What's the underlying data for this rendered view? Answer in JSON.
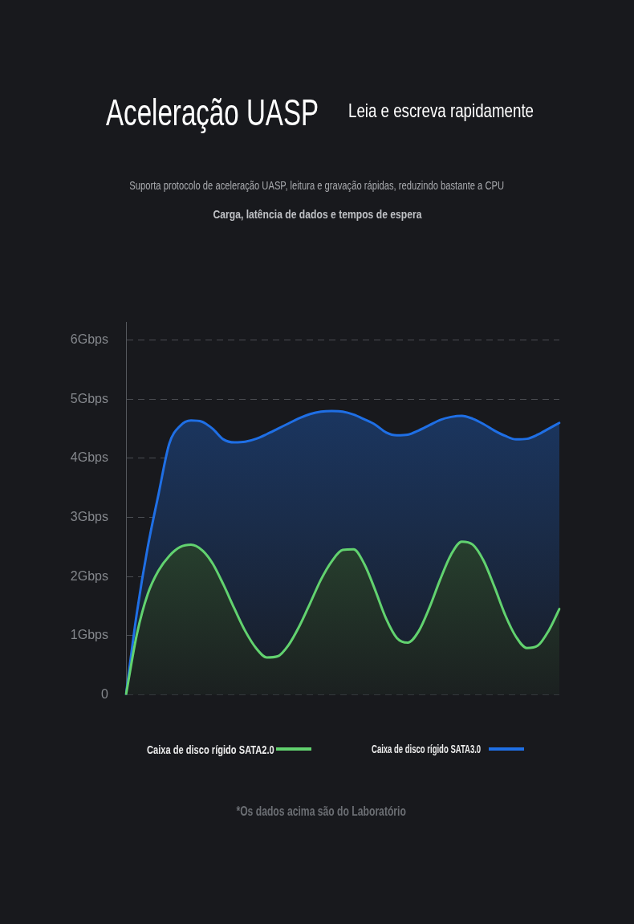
{
  "chart_data": {
    "type": "area",
    "title": "Aceleração UASP",
    "subtitle": "Leia e escreva rapidamente",
    "annotations": [
      "Suporta protocolo de aceleração UASP, leitura e gravação rápidas, reduzindo bastante a CPU",
      "Carga, latência de dados e tempos de espera",
      "*Os dados acima são do Laboratório"
    ],
    "categories": [
      null,
      null,
      null,
      null,
      null,
      null,
      null,
      null,
      null,
      null,
      null,
      null,
      null,
      null,
      null,
      null,
      null,
      null,
      null,
      null,
      null,
      null,
      null,
      null,
      null,
      null,
      null,
      null,
      null,
      null,
      null,
      null,
      null,
      null,
      null,
      null,
      null,
      null,
      null,
      null,
      null
    ],
    "series": [
      {
        "name": "Caixa de disco rígido SATA2.0",
        "color": "#62d26f",
        "values": [
          0,
          1.02,
          1.7,
          2.1,
          2.35,
          2.5,
          2.54,
          2.45,
          2.22,
          1.86,
          1.46,
          1.08,
          0.79,
          0.63,
          0.65,
          0.84,
          1.16,
          1.55,
          1.95,
          2.26,
          2.45,
          2.46,
          2.21,
          1.77,
          1.29,
          0.96,
          0.88,
          1.07,
          1.47,
          1.95,
          2.37,
          2.59,
          2.54,
          2.27,
          1.83,
          1.35,
          0.98,
          0.79,
          0.83,
          1.08,
          1.45
        ]
      },
      {
        "name": "Caixa de disco rígido SATA3.0",
        "color": "#1f6fe5",
        "values": [
          0,
          1.38,
          2.49,
          3.39,
          4.25,
          4.55,
          4.64,
          4.62,
          4.5,
          4.32,
          4.27,
          4.28,
          4.33,
          4.41,
          4.5,
          4.59,
          4.68,
          4.75,
          4.79,
          4.8,
          4.79,
          4.74,
          4.66,
          4.57,
          4.44,
          4.39,
          4.4,
          4.47,
          4.56,
          4.65,
          4.7,
          4.72,
          4.67,
          4.58,
          4.47,
          4.38,
          4.32,
          4.33,
          4.4,
          4.5,
          4.6
        ]
      }
    ],
    "ylim": [
      0,
      6.3
    ],
    "yticks": [
      0,
      {
        "value": 1,
        "label": "1Gbps"
      },
      {
        "value": 2,
        "label": "2Gbps"
      },
      {
        "value": 3,
        "label": "3Gbps"
      },
      {
        "value": 4,
        "label": "4Gbps"
      },
      {
        "value": 5,
        "label": "5Gbps"
      },
      {
        "value": 6,
        "label": "6Gbps"
      }
    ],
    "grid": "y",
    "legend": "bottom"
  }
}
